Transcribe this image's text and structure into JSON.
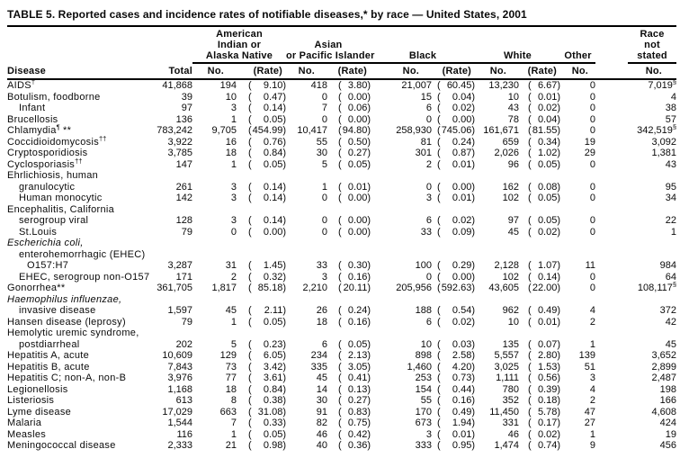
{
  "title": "TABLE 5. Reported cases and incidence rates of notifiable diseases,* by race — United States, 2001",
  "table": {
    "disease_header": "Disease",
    "total_header": "Total",
    "col_groups": [
      {
        "id": "american-indian-alaska-native",
        "label_lines": [
          "American",
          "Indian or",
          "Alaska Native"
        ],
        "cols": [
          "No.",
          "(Rate)"
        ]
      },
      {
        "id": "asian-pacific-islander",
        "label_lines": [
          "Asian",
          "or Pacific Islander"
        ],
        "cols": [
          "No.",
          "(Rate)"
        ]
      },
      {
        "id": "black",
        "label_lines": [
          "Black"
        ],
        "cols": [
          "No.",
          "(Rate)"
        ]
      },
      {
        "id": "white",
        "label_lines": [
          "White"
        ],
        "cols": [
          "No.",
          "(Rate)"
        ]
      },
      {
        "id": "other",
        "label_lines": [
          "Other"
        ],
        "cols": [
          "No."
        ]
      },
      {
        "id": "race-not-stated",
        "label_lines": [
          "Race",
          "not",
          "stated"
        ],
        "cols": [
          "No."
        ]
      }
    ],
    "rows": [
      {
        "d": "AIDS",
        "sup": "†",
        "c": [
          "41,868",
          "194",
          "9.10",
          "418",
          "3.80",
          "21,007",
          "60.45",
          "13,230",
          "6.67",
          "0",
          "7,019"
        ],
        "nsup": "§"
      },
      {
        "d": "Botulism, foodborne",
        "c": [
          "39",
          "10",
          "0.47",
          "0",
          "0.00",
          "15",
          "0.04",
          "10",
          "0.01",
          "0",
          "4"
        ]
      },
      {
        "d": "Infant",
        "ind": 1,
        "c": [
          "97",
          "3",
          "0.14",
          "7",
          "0.06",
          "6",
          "0.02",
          "43",
          "0.02",
          "0",
          "38"
        ]
      },
      {
        "d": "Brucellosis",
        "c": [
          "136",
          "1",
          "0.05",
          "0",
          "0.00",
          "0",
          "0.00",
          "78",
          "0.04",
          "0",
          "57"
        ]
      },
      {
        "d": "Chlamydia",
        "sup": "¶",
        "tail": " **",
        "c": [
          "783,242",
          "9,705",
          "454.99",
          "10,417",
          "94.80",
          "258,930",
          "745.06",
          "161,671",
          "81.55",
          "0",
          "342,519"
        ],
        "nsup": "§"
      },
      {
        "d": "Coccidioidomycosis",
        "sup": "††",
        "c": [
          "3,922",
          "16",
          "0.76",
          "55",
          "0.50",
          "81",
          "0.24",
          "659",
          "0.34",
          "19",
          "3,092"
        ]
      },
      {
        "d": "Cryptosporidiosis",
        "c": [
          "3,785",
          "18",
          "0.84",
          "30",
          "0.27",
          "301",
          "0.87",
          "2,026",
          "1.02",
          "29",
          "1,381"
        ]
      },
      {
        "d": "Cyclosporiasis",
        "sup": "††",
        "c": [
          "147",
          "1",
          "0.05",
          "5",
          "0.05",
          "2",
          "0.01",
          "96",
          "0.05",
          "0",
          "43"
        ]
      },
      {
        "d": "Ehrlichiosis, human"
      },
      {
        "d": "granulocytic",
        "ind": 1,
        "c": [
          "261",
          "3",
          "0.14",
          "1",
          "0.01",
          "0",
          "0.00",
          "162",
          "0.08",
          "0",
          "95"
        ]
      },
      {
        "d": "Human monocytic",
        "ind": 1,
        "c": [
          "142",
          "3",
          "0.14",
          "0",
          "0.00",
          "3",
          "0.01",
          "102",
          "0.05",
          "0",
          "34"
        ]
      },
      {
        "d": "Encephalitis, California"
      },
      {
        "d": "serogroup viral",
        "ind": 1,
        "c": [
          "128",
          "3",
          "0.14",
          "0",
          "0.00",
          "6",
          "0.02",
          "97",
          "0.05",
          "0",
          "22"
        ]
      },
      {
        "d": "St.Louis",
        "ind": 1,
        "c": [
          "79",
          "0",
          "0.00",
          "0",
          "0.00",
          "33",
          "0.09",
          "45",
          "0.02",
          "0",
          "1"
        ]
      },
      {
        "d": "Escherichia coli,",
        "it": true
      },
      {
        "d": "enterohemorrhagic (EHEC)",
        "ind": 1
      },
      {
        "d": "O157:H7",
        "ind": 2,
        "c": [
          "3,287",
          "31",
          "1.45",
          "33",
          "0.30",
          "100",
          "0.29",
          "2,128",
          "1.07",
          "11",
          "984"
        ]
      },
      {
        "d": "EHEC, serogroup non-O157",
        "ind": 1,
        "c": [
          "171",
          "2",
          "0.32",
          "3",
          "0.16",
          "0",
          "0.00",
          "102",
          "0.14",
          "0",
          "64"
        ]
      },
      {
        "d": "Gonorrhea",
        "tail": "**",
        "c": [
          "361,705",
          "1,817",
          "85.18",
          "2,210",
          "20.11",
          "205,956",
          "592.63",
          "43,605",
          "22.00",
          "0",
          "108,117"
        ],
        "nsup": "§"
      },
      {
        "d": "Haemophilus influenzae,",
        "it": true
      },
      {
        "d": "invasive disease",
        "ind": 1,
        "c": [
          "1,597",
          "45",
          "2.11",
          "26",
          "0.24",
          "188",
          "0.54",
          "962",
          "0.49",
          "4",
          "372"
        ]
      },
      {
        "d": "Hansen disease (leprosy)",
        "c": [
          "79",
          "1",
          "0.05",
          "18",
          "0.16",
          "6",
          "0.02",
          "10",
          "0.01",
          "2",
          "42"
        ]
      },
      {
        "d": "Hemolytic uremic syndrome,"
      },
      {
        "d": "postdiarrheal",
        "ind": 1,
        "c": [
          "202",
          "5",
          "0.23",
          "6",
          "0.05",
          "10",
          "0.03",
          "135",
          "0.07",
          "1",
          "45"
        ]
      },
      {
        "d": "Hepatitis A, acute",
        "c": [
          "10,609",
          "129",
          "6.05",
          "234",
          "2.13",
          "898",
          "2.58",
          "5,557",
          "2.80",
          "139",
          "3,652"
        ]
      },
      {
        "d": "Hepatitis B, acute",
        "c": [
          "7,843",
          "73",
          "3.42",
          "335",
          "3.05",
          "1,460",
          "4.20",
          "3,025",
          "1.53",
          "51",
          "2,899"
        ]
      },
      {
        "d": "Hepatitis C; non-A, non-B",
        "c": [
          "3,976",
          "77",
          "3.61",
          "45",
          "0.41",
          "253",
          "0.73",
          "1,111",
          "0.56",
          "3",
          "2,487"
        ]
      },
      {
        "d": "Legionellosis",
        "c": [
          "1,168",
          "18",
          "0.84",
          "14",
          "0.13",
          "154",
          "0.44",
          "780",
          "0.39",
          "4",
          "198"
        ]
      },
      {
        "d": "Listeriosis",
        "c": [
          "613",
          "8",
          "0.38",
          "30",
          "0.27",
          "55",
          "0.16",
          "352",
          "0.18",
          "2",
          "166"
        ]
      },
      {
        "d": "Lyme disease",
        "c": [
          "17,029",
          "663",
          "31.08",
          "91",
          "0.83",
          "170",
          "0.49",
          "11,450",
          "5.78",
          "47",
          "4,608"
        ]
      },
      {
        "d": "Malaria",
        "c": [
          "1,544",
          "7",
          "0.33",
          "82",
          "0.75",
          "673",
          "1.94",
          "331",
          "0.17",
          "27",
          "424"
        ]
      },
      {
        "d": "Measles",
        "c": [
          "116",
          "1",
          "0.05",
          "46",
          "0.42",
          "3",
          "0.01",
          "46",
          "0.02",
          "1",
          "19"
        ]
      },
      {
        "d": "Meningococcal disease",
        "c": [
          "2,333",
          "21",
          "0.98",
          "40",
          "0.36",
          "333",
          "0.95",
          "1,474",
          "0.74",
          "9",
          "456"
        ]
      }
    ]
  }
}
